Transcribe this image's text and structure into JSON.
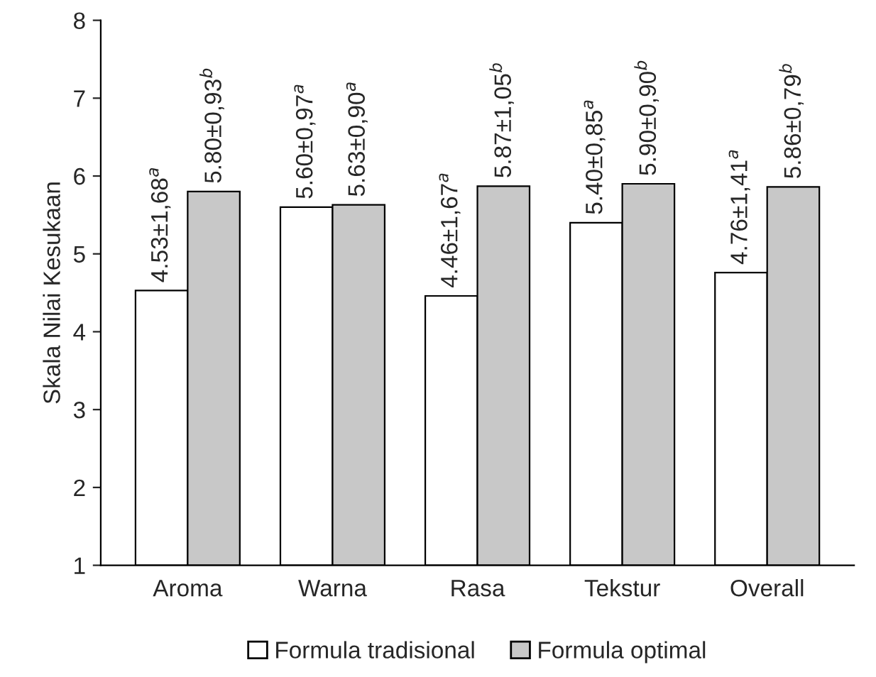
{
  "chart_data": {
    "type": "bar",
    "ylabel": "Skala Nilai Kesukaan",
    "categories": [
      "Aroma",
      "Warna",
      "Rasa",
      "Tekstur",
      "Overall"
    ],
    "series": [
      {
        "name": "Formula tradisional",
        "color": "#ffffff",
        "values": [
          4.53,
          5.6,
          4.46,
          5.4,
          4.76
        ],
        "value_labels": [
          "4.53±1,68$^{a}$",
          "5.60±0,97$^{a}$",
          "4.46±1,67$^{a}$",
          "5.40±0,85$^{a}$",
          "4.76±1,41$^{a}$"
        ]
      },
      {
        "name": "Formula optimal",
        "color": "#c8c8c8",
        "values": [
          5.8,
          5.63,
          5.87,
          5.9,
          5.86
        ],
        "value_labels": [
          "5.80±0,93$^{b}$",
          "5.63±0,90$^{a}$",
          "5.87±1,05$^{b}$",
          "5.90±0,90$^{b}$",
          "5.86±0,79$^{b}$"
        ]
      }
    ],
    "ylim": [
      1,
      8
    ],
    "yticks": [
      1,
      2,
      3,
      4,
      5,
      6,
      7,
      8
    ],
    "grid": false,
    "legend": "bottom"
  }
}
